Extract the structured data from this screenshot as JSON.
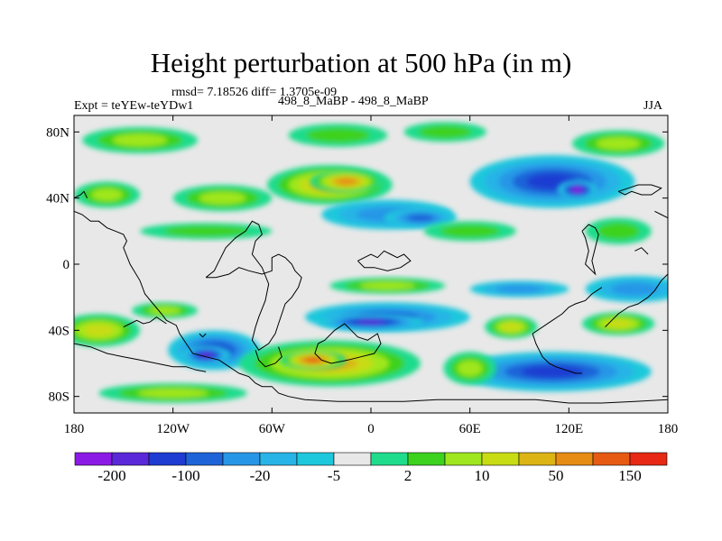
{
  "chart_data": {
    "type": "heatmap",
    "title": "Height perturbation at 500 hPa (in m)",
    "stats": "rmsd= 7.18526 diff= 1.3705e-09",
    "experiment": "Expt = teYEw-teYDw1",
    "subtitle": "498_8_MaBP - 498_8_MaBP",
    "season": "JJA",
    "xlabel": "",
    "ylabel": "",
    "xlim": [
      -180,
      180
    ],
    "ylim": [
      -90,
      90
    ],
    "x_ticks": [
      {
        "value": -180,
        "label": "180"
      },
      {
        "value": -120,
        "label": "120W"
      },
      {
        "value": -60,
        "label": "60W"
      },
      {
        "value": 0,
        "label": "0"
      },
      {
        "value": 60,
        "label": "60E"
      },
      {
        "value": 120,
        "label": "120E"
      },
      {
        "value": 180,
        "label": "180"
      }
    ],
    "y_ticks": [
      {
        "value": 80,
        "label": "80N"
      },
      {
        "value": 40,
        "label": "40N"
      },
      {
        "value": 0,
        "label": "0"
      },
      {
        "value": -40,
        "label": "40S"
      },
      {
        "value": -80,
        "label": "80S"
      }
    ],
    "colorbar": {
      "colors": [
        "#8c1ae6",
        "#5a28d8",
        "#1e3cd2",
        "#1e64d8",
        "#2896e6",
        "#28b4e6",
        "#1ec8dc",
        "#e8e8e8",
        "#1edc8c",
        "#3cd21e",
        "#a0e61e",
        "#c8dc14",
        "#dcb414",
        "#e68c14",
        "#e65a14",
        "#e62814"
      ],
      "labels": [
        {
          "after_box": 1,
          "text": "-200"
        },
        {
          "after_box": 3,
          "text": "-100"
        },
        {
          "after_box": 5,
          "text": "-20"
        },
        {
          "after_box": 7,
          "text": "-5"
        },
        {
          "after_box": 9,
          "text": "2"
        },
        {
          "after_box": 11,
          "text": "10"
        },
        {
          "after_box": 13,
          "text": "50"
        },
        {
          "after_box": 15,
          "text": "150"
        }
      ]
    },
    "fields": [
      {
        "lon": -140,
        "lat": 75,
        "dlon": 35,
        "dlat": 8,
        "level": 3
      },
      {
        "lon": -20,
        "lat": 78,
        "dlon": 30,
        "dlat": 7,
        "level": 2
      },
      {
        "lon": 45,
        "lat": 80,
        "dlon": 25,
        "dlat": 6,
        "level": 2
      },
      {
        "lon": 150,
        "lat": 73,
        "dlon": 28,
        "dlat": 8,
        "level": 3
      },
      {
        "lon": -160,
        "lat": 42,
        "dlon": 20,
        "dlat": 8,
        "level": 3
      },
      {
        "lon": -90,
        "lat": 40,
        "dlon": 30,
        "dlat": 8,
        "level": 3
      },
      {
        "lon": -25,
        "lat": 48,
        "dlon": 38,
        "dlat": 12,
        "level": 5
      },
      {
        "lon": -15,
        "lat": 50,
        "dlon": 22,
        "dlat": 7,
        "level": 6
      },
      {
        "lon": -100,
        "lat": 20,
        "dlon": 40,
        "dlat": 5,
        "level": 2
      },
      {
        "lon": 10,
        "lat": 30,
        "dlon": 40,
        "dlat": 9,
        "level": -3
      },
      {
        "lon": 30,
        "lat": 28,
        "dlon": 22,
        "dlat": 6,
        "level": -4
      },
      {
        "lon": 110,
        "lat": 50,
        "dlon": 50,
        "dlat": 16,
        "level": -5
      },
      {
        "lon": 125,
        "lat": 45,
        "dlon": 12,
        "dlat": 6,
        "level": -7
      },
      {
        "lon": 60,
        "lat": 20,
        "dlon": 28,
        "dlat": 6,
        "level": 2
      },
      {
        "lon": 150,
        "lat": 20,
        "dlon": 20,
        "dlat": 8,
        "level": 2
      },
      {
        "lon": 10,
        "lat": -13,
        "dlon": 35,
        "dlat": 5,
        "level": 3
      },
      {
        "lon": 90,
        "lat": -15,
        "dlon": 30,
        "dlat": 5,
        "level": -3
      },
      {
        "lon": 160,
        "lat": -15,
        "dlon": 30,
        "dlat": 8,
        "level": -3
      },
      {
        "lon": -165,
        "lat": -40,
        "dlon": 25,
        "dlat": 10,
        "level": 4
      },
      {
        "lon": -125,
        "lat": -28,
        "dlon": 20,
        "dlat": 5,
        "level": 3
      },
      {
        "lon": -95,
        "lat": -52,
        "dlon": 28,
        "dlat": 12,
        "level": -5
      },
      {
        "lon": -100,
        "lat": -55,
        "dlon": 15,
        "dlat": 6,
        "level": -6
      },
      {
        "lon": -25,
        "lat": -60,
        "dlon": 55,
        "dlat": 14,
        "level": 5
      },
      {
        "lon": -35,
        "lat": -58,
        "dlon": 20,
        "dlat": 6,
        "level": 7
      },
      {
        "lon": 10,
        "lat": -32,
        "dlon": 50,
        "dlat": 9,
        "level": -4
      },
      {
        "lon": 0,
        "lat": -35,
        "dlon": 32,
        "dlat": 5,
        "level": -6
      },
      {
        "lon": 85,
        "lat": -38,
        "dlon": 16,
        "dlat": 7,
        "level": 4
      },
      {
        "lon": 150,
        "lat": -36,
        "dlon": 22,
        "dlat": 7,
        "level": 4
      },
      {
        "lon": 110,
        "lat": -65,
        "dlon": 60,
        "dlat": 12,
        "level": -5
      },
      {
        "lon": 60,
        "lat": -63,
        "dlon": 16,
        "dlat": 10,
        "level": 3
      },
      {
        "lon": -120,
        "lat": -78,
        "dlon": 45,
        "dlat": 6,
        "level": 3
      }
    ],
    "coastlines": [
      [
        [
          -180,
          32
        ],
        [
          -175,
          30
        ],
        [
          -170,
          26
        ],
        [
          -165,
          26
        ],
        [
          -160,
          22
        ],
        [
          -155,
          20
        ],
        [
          -150,
          18
        ],
        [
          -148,
          14
        ],
        [
          -150,
          10
        ],
        [
          -146,
          0
        ],
        [
          -140,
          -10
        ],
        [
          -137,
          -18
        ],
        [
          -132,
          -24
        ],
        [
          -127,
          -30
        ],
        [
          -124,
          -34
        ],
        [
          -118,
          -37
        ],
        [
          -116,
          -42
        ],
        [
          -112,
          -48
        ],
        [
          -108,
          -54
        ],
        [
          -100,
          -56
        ],
        [
          -92,
          -58
        ],
        [
          -86,
          -62
        ],
        [
          -80,
          -66
        ],
        [
          -74,
          -68
        ],
        [
          -70,
          -72
        ],
        [
          -66,
          -74
        ],
        [
          -60,
          -74
        ],
        [
          -56,
          -78
        ],
        [
          -50,
          -80
        ],
        [
          -40,
          -82
        ],
        [
          -20,
          -83
        ],
        [
          20,
          -83
        ],
        [
          40,
          -82
        ],
        [
          80,
          -82
        ],
        [
          100,
          -82
        ],
        [
          120,
          -84
        ],
        [
          140,
          -84
        ],
        [
          160,
          -83
        ],
        [
          180,
          -82
        ]
      ],
      [
        [
          -180,
          -48
        ],
        [
          -170,
          -50
        ],
        [
          -160,
          -54
        ],
        [
          -150,
          -56
        ],
        [
          -140,
          -58
        ],
        [
          -130,
          -60
        ],
        [
          -120,
          -62
        ],
        [
          -112,
          -62
        ],
        [
          -106,
          -64
        ],
        [
          -100,
          -65
        ]
      ],
      [
        [
          -150,
          -38
        ],
        [
          -146,
          -36
        ],
        [
          -142,
          -34
        ],
        [
          -138,
          -36
        ],
        [
          -134,
          -35
        ],
        [
          -130,
          -32
        ],
        [
          -124,
          -36
        ]
      ],
      [
        [
          -100,
          -8
        ],
        [
          -95,
          -4
        ],
        [
          -92,
          2
        ],
        [
          -88,
          10
        ],
        [
          -86,
          12
        ],
        [
          -82,
          16
        ],
        [
          -76,
          20
        ],
        [
          -72,
          26
        ],
        [
          -68,
          24
        ],
        [
          -66,
          18
        ],
        [
          -70,
          14
        ],
        [
          -72,
          6
        ],
        [
          -66,
          -2
        ],
        [
          -62,
          -12
        ],
        [
          -64,
          -22
        ],
        [
          -68,
          -32
        ],
        [
          -70,
          -38
        ],
        [
          -72,
          -46
        ],
        [
          -68,
          -52
        ],
        [
          -62,
          -48
        ],
        [
          -58,
          -42
        ],
        [
          -56,
          -36
        ],
        [
          -54,
          -30
        ],
        [
          -52,
          -24
        ],
        [
          -48,
          -20
        ],
        [
          -44,
          -14
        ],
        [
          -42,
          -8
        ],
        [
          -46,
          -4
        ],
        [
          -48,
          0
        ],
        [
          -52,
          4
        ],
        [
          -56,
          6
        ],
        [
          -60,
          4
        ],
        [
          -60,
          -4
        ],
        [
          -66,
          -6
        ],
        [
          -74,
          -4
        ],
        [
          -80,
          -2
        ],
        [
          -86,
          -6
        ],
        [
          -94,
          -8
        ],
        [
          -100,
          -8
        ]
      ],
      [
        [
          -70,
          -52
        ],
        [
          -68,
          -58
        ],
        [
          -64,
          -62
        ],
        [
          -58,
          -60
        ],
        [
          -54,
          -56
        ],
        [
          -56,
          -50
        ]
      ],
      [
        [
          -32,
          -48
        ],
        [
          -28,
          -46
        ],
        [
          -22,
          -40
        ],
        [
          -16,
          -36
        ],
        [
          -12,
          -40
        ],
        [
          -8,
          -44
        ],
        [
          -2,
          -46
        ],
        [
          4,
          -42
        ],
        [
          6,
          -48
        ],
        [
          2,
          -54
        ],
        [
          -6,
          -56
        ],
        [
          -14,
          -58
        ],
        [
          -24,
          -60
        ],
        [
          -30,
          -58
        ],
        [
          -34,
          -54
        ],
        [
          -32,
          -48
        ]
      ],
      [
        [
          -8,
          2
        ],
        [
          -4,
          4
        ],
        [
          0,
          6
        ],
        [
          4,
          4
        ],
        [
          8,
          8
        ],
        [
          12,
          6
        ],
        [
          16,
          4
        ],
        [
          20,
          6
        ],
        [
          24,
          2
        ],
        [
          18,
          -2
        ],
        [
          10,
          -4
        ],
        [
          2,
          -2
        ],
        [
          -4,
          -2
        ],
        [
          -8,
          2
        ]
      ],
      [
        [
          98,
          -42
        ],
        [
          100,
          -48
        ],
        [
          104,
          -56
        ],
        [
          108,
          -60
        ],
        [
          112,
          -62
        ],
        [
          118,
          -64
        ],
        [
          124,
          -66
        ],
        [
          128,
          -66
        ]
      ],
      [
        [
          98,
          -42
        ],
        [
          104,
          -38
        ],
        [
          110,
          -34
        ],
        [
          116,
          -30
        ],
        [
          120,
          -26
        ],
        [
          124,
          -24
        ],
        [
          130,
          -22
        ],
        [
          134,
          -18
        ],
        [
          140,
          -14
        ]
      ],
      [
        [
          128,
          20
        ],
        [
          130,
          16
        ],
        [
          132,
          8
        ],
        [
          130,
          0
        ],
        [
          134,
          -4
        ],
        [
          136,
          -6
        ],
        [
          134,
          2
        ],
        [
          136,
          10
        ],
        [
          138,
          18
        ],
        [
          136,
          22
        ],
        [
          132,
          24
        ],
        [
          128,
          20
        ]
      ],
      [
        [
          142,
          -38
        ],
        [
          146,
          -34
        ],
        [
          150,
          -30
        ],
        [
          156,
          -26
        ],
        [
          162,
          -24
        ],
        [
          168,
          -20
        ],
        [
          172,
          -16
        ],
        [
          176,
          -10
        ],
        [
          180,
          -6
        ]
      ],
      [
        [
          150,
          44
        ],
        [
          154,
          42
        ],
        [
          158,
          44
        ],
        [
          164,
          42
        ],
        [
          170,
          42
        ],
        [
          176,
          46
        ],
        [
          170,
          48
        ],
        [
          162,
          48
        ],
        [
          156,
          46
        ],
        [
          150,
          44
        ]
      ],
      [
        [
          -180,
          40
        ],
        [
          -176,
          42
        ],
        [
          -174,
          44
        ],
        [
          -172,
          40
        ]
      ],
      [
        [
          172,
          32
        ],
        [
          176,
          30
        ],
        [
          180,
          28
        ]
      ],
      [
        [
          160,
          8
        ],
        [
          164,
          10
        ],
        [
          168,
          6
        ]
      ],
      [
        [
          -104,
          -42
        ],
        [
          -102,
          -44
        ],
        [
          -100,
          -42
        ]
      ]
    ]
  }
}
